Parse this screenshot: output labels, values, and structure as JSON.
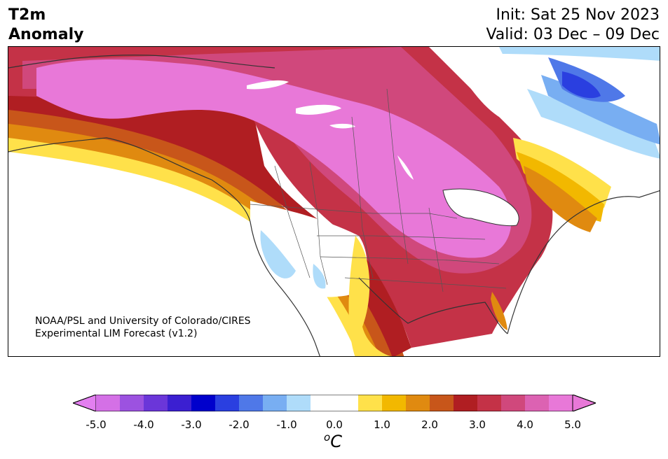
{
  "title": {
    "left_line1": "T2m",
    "left_line2": "Anomaly",
    "init": "Init: Sat 25 Nov 2023",
    "valid": "Valid: 03 Dec – 09 Dec"
  },
  "credit": {
    "line1": "NOAA/PSL and University of Colorado/CIRES",
    "line2": "Experimental LIM Forecast (v1.2)"
  },
  "colorbar": {
    "colors": [
      "#d470e6",
      "#9c52e0",
      "#6b36d9",
      "#3b1fd1",
      "#0000cc",
      "#2a3fe0",
      "#4f78e8",
      "#78aef2",
      "#afdcfa",
      "#ffffff",
      "#ffffff",
      "#ffe14a",
      "#f2b800",
      "#e08a10",
      "#c8561a",
      "#b01e22",
      "#c43247",
      "#d0487c",
      "#dc62b2",
      "#e878d8"
    ],
    "under_color": "#e37ff0",
    "over_color": "#e878d8",
    "ticks": [
      "-5.0",
      "-4.0",
      "-3.0",
      "-2.0",
      "-1.0",
      "0.0",
      "1.0",
      "2.0",
      "3.0",
      "4.0",
      "5.0"
    ],
    "unit_base": "C",
    "unit_sup": "o"
  },
  "map_colors": {
    "pink": "#e878d8",
    "magenta": "#d0487c",
    "rose": "#c43247",
    "red": "#b01e22",
    "rust": "#c8561a",
    "orange": "#e08a10",
    "gold": "#f2b800",
    "yellow": "#ffe14a",
    "lightblue": "#afdcfa",
    "skyblue": "#78aef2",
    "blue": "#4f78e8",
    "darkblue": "#2a3fe0"
  }
}
